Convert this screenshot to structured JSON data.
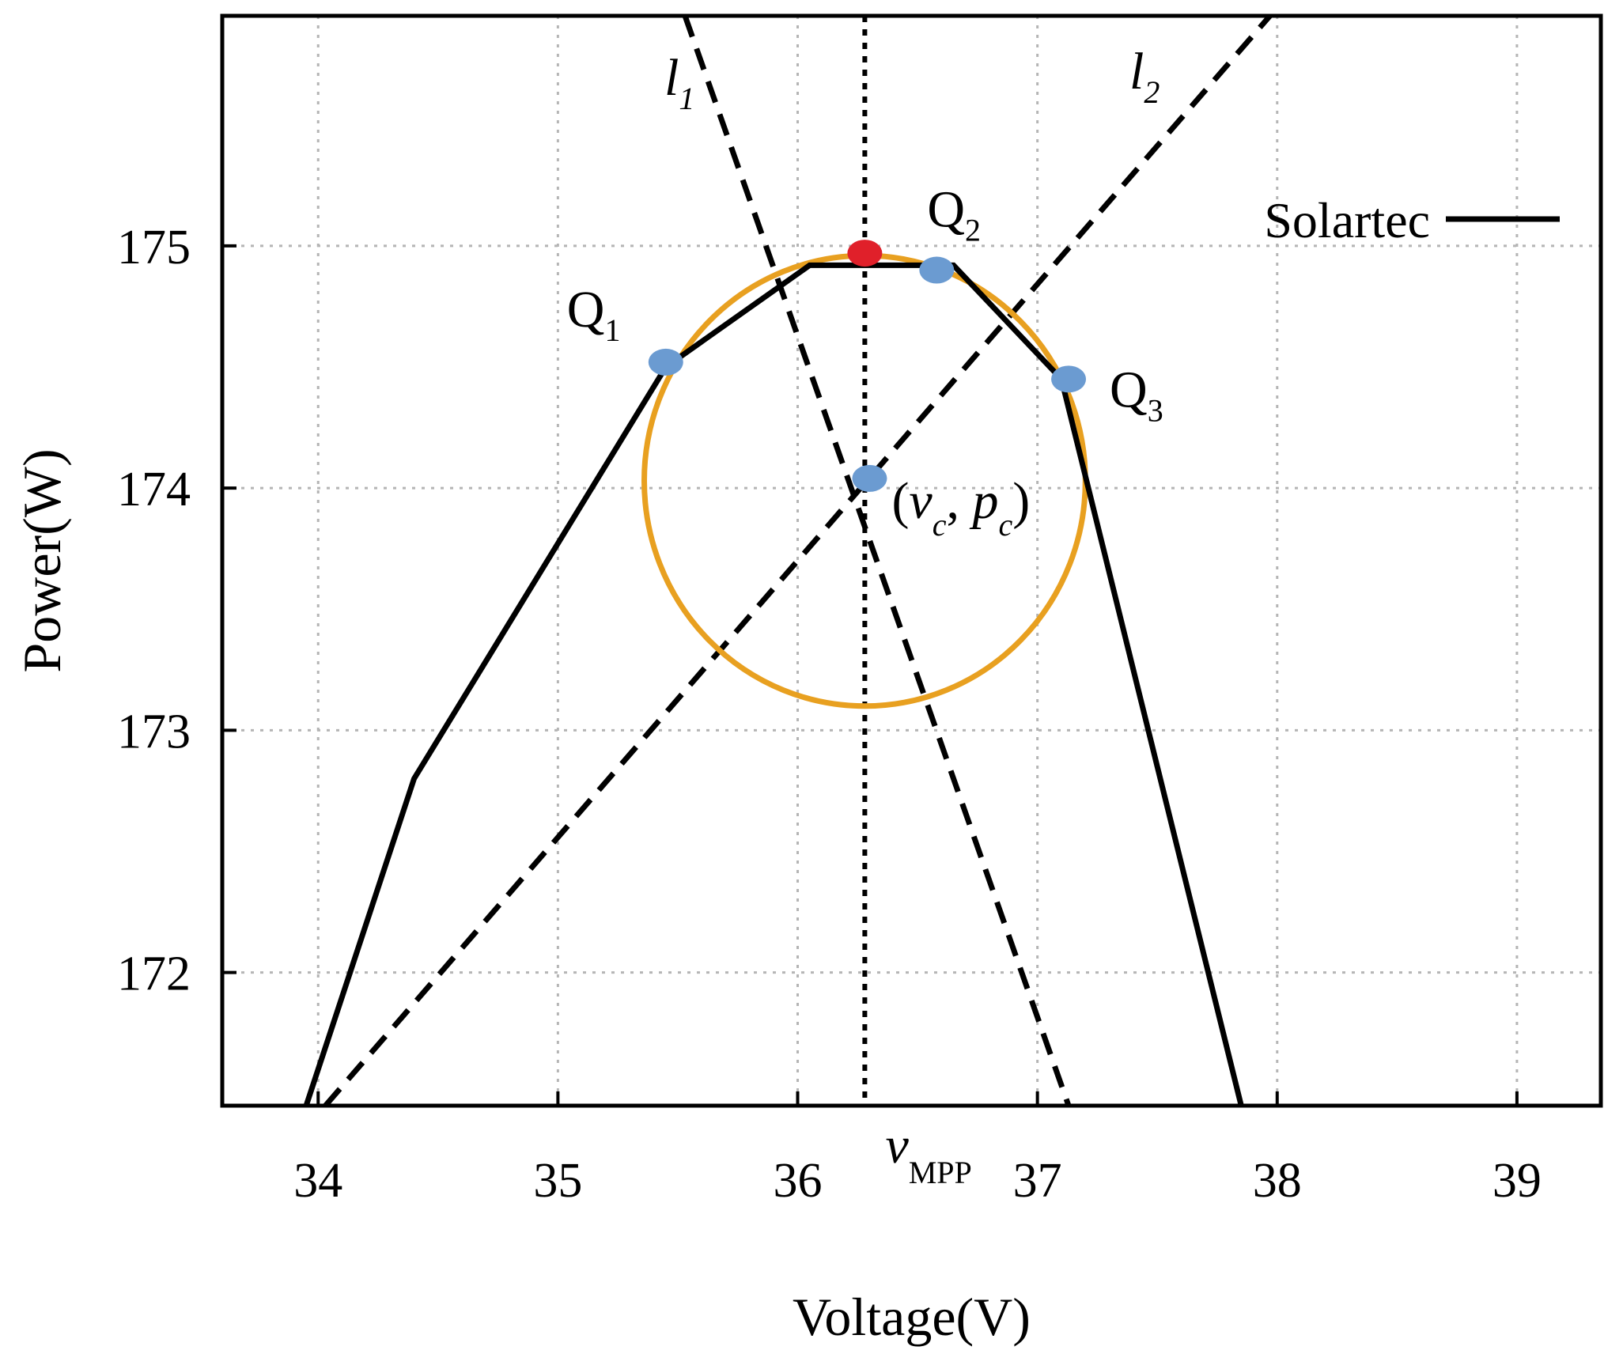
{
  "chart_data": {
    "type": "line",
    "xlabel": "Voltage(V)",
    "ylabel": "Power(W)",
    "xlim": [
      33.6,
      39.35
    ],
    "ylim": [
      171.45,
      175.95
    ],
    "xticks": [
      34,
      35,
      36,
      37,
      38,
      39
    ],
    "yticks": [
      172,
      173,
      174,
      175
    ],
    "grid": true,
    "legend_position": "top-right",
    "series": [
      {
        "name": "Solartec",
        "color": "#000000",
        "x": [
          33.95,
          34.4,
          35.45,
          36.05,
          36.65,
          37.1,
          37.85
        ],
        "y": [
          171.45,
          172.8,
          174.5,
          174.92,
          174.92,
          174.45,
          171.45
        ]
      }
    ],
    "annotations": {
      "circle": {
        "center": [
          36.28,
          174.03
        ],
        "radius_x_volts": 0.92,
        "radius_y_watts": 0.93,
        "color": "#e8a020"
      },
      "lines": [
        {
          "label_main": "l",
          "label_sub": "1",
          "style": "dashed",
          "from": [
            35.53,
            175.95
          ],
          "to": [
            37.13,
            171.45
          ]
        },
        {
          "label_main": "l",
          "label_sub": "2",
          "style": "dashed",
          "from": [
            34.03,
            171.45
          ],
          "to": [
            37.97,
            175.95
          ]
        },
        {
          "label_main": "",
          "label_sub": "",
          "style": "dotted",
          "from": [
            36.28,
            175.95
          ],
          "to": [
            36.28,
            171.45
          ]
        }
      ],
      "points": [
        {
          "name": "Q1",
          "label_main": "Q",
          "label_sub": "1",
          "x": 35.45,
          "y": 174.52,
          "color": "#6b9bd1"
        },
        {
          "name": "Q2",
          "label_main": "Q",
          "label_sub": "2",
          "x": 36.58,
          "y": 174.9,
          "color": "#6b9bd1"
        },
        {
          "name": "Q3",
          "label_main": "Q",
          "label_sub": "3",
          "x": 37.13,
          "y": 174.45,
          "color": "#6b9bd1"
        },
        {
          "name": "center",
          "x": 36.3,
          "y": 174.04,
          "color": "#6b9bd1"
        },
        {
          "name": "mpp",
          "x": 36.28,
          "y": 174.97,
          "color": "#e0202a"
        }
      ],
      "center_label": {
        "open": "(",
        "v": "v",
        "v_sub": "c",
        "comma": ",",
        "p": "p",
        "p_sub": "c",
        "close": ")"
      },
      "vmpp_label": {
        "main": "v",
        "sub": "MPP"
      }
    }
  }
}
